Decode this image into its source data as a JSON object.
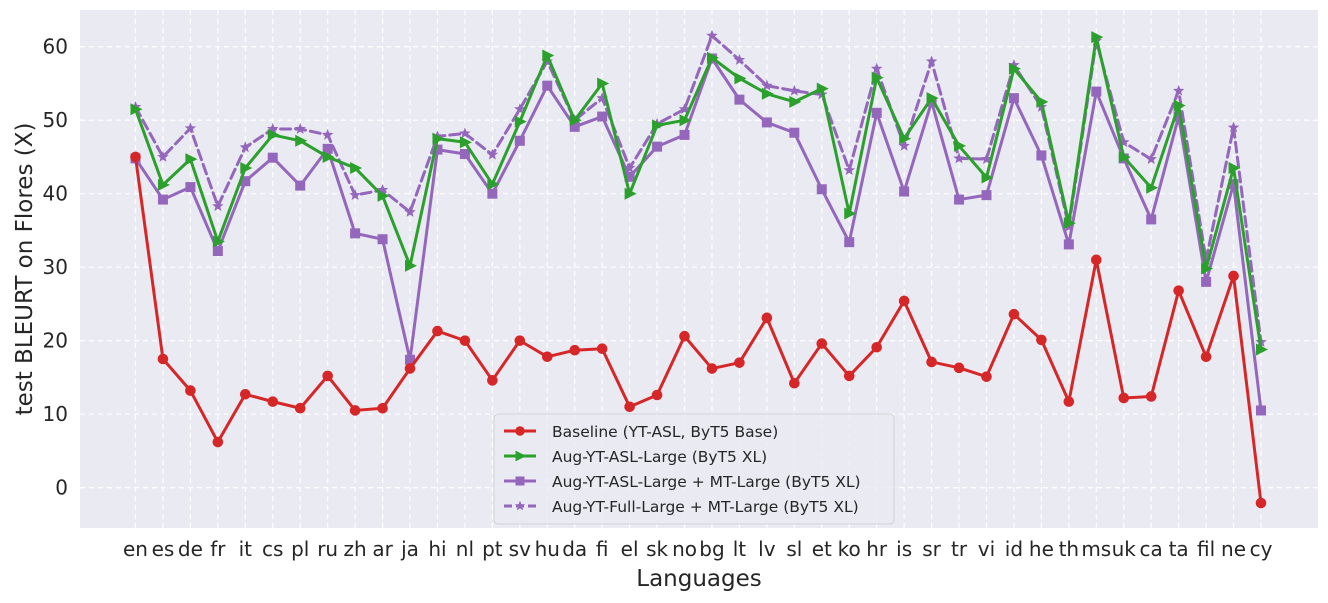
{
  "chart_data": {
    "type": "line",
    "xlabel": "Languages",
    "ylabel": "test BLEURT on Flores (X)",
    "ylim": [
      -5.5,
      65
    ],
    "yticks": [
      0,
      10,
      20,
      30,
      40,
      50,
      60
    ],
    "grid": true,
    "legend_position": "lower-center",
    "categories": [
      "en",
      "es",
      "de",
      "fr",
      "it",
      "cs",
      "pl",
      "ru",
      "zh",
      "ar",
      "ja",
      "hi",
      "nl",
      "pt",
      "sv",
      "hu",
      "da",
      "fi",
      "el",
      "sk",
      "no",
      "bg",
      "lt",
      "lv",
      "sl",
      "et",
      "ko",
      "hr",
      "is",
      "sr",
      "tr",
      "vi",
      "id",
      "he",
      "th",
      "ms",
      "uk",
      "ca",
      "ta",
      "fil",
      "ne",
      "cy"
    ],
    "series": [
      {
        "name": "Baseline (YT-ASL, ByT5 Base)",
        "color": "#d62728",
        "marker": "circle",
        "dash": "solid",
        "values": [
          45.0,
          17.5,
          13.2,
          6.2,
          12.7,
          11.7,
          10.8,
          15.2,
          10.5,
          10.8,
          16.2,
          21.3,
          20.0,
          14.6,
          20.0,
          17.8,
          18.7,
          18.9,
          11.0,
          12.6,
          20.6,
          16.2,
          17.0,
          23.1,
          14.2,
          19.6,
          15.2,
          19.1,
          25.4,
          17.1,
          16.3,
          15.1,
          23.6,
          20.1,
          11.7,
          31.0,
          12.2,
          12.4,
          26.8,
          17.8,
          28.8,
          -2.1
        ]
      },
      {
        "name": "Aug-YT-ASL-Large (ByT5 XL)",
        "color": "#2ca02c",
        "marker": "triangle-right",
        "dash": "solid",
        "values": [
          51.5,
          41.2,
          44.7,
          33.5,
          43.5,
          48.0,
          47.2,
          45.0,
          43.5,
          39.7,
          30.2,
          47.5,
          47.0,
          41.3,
          49.8,
          58.8,
          50.0,
          55.0,
          40.0,
          49.3,
          50.0,
          58.5,
          55.7,
          53.6,
          52.5,
          54.3,
          37.3,
          55.8,
          47.5,
          53.0,
          46.5,
          42.2,
          57.0,
          52.5,
          36.0,
          61.3,
          45.0,
          40.8,
          52.0,
          29.8,
          43.5,
          18.8
        ]
      },
      {
        "name": "Aug-YT-ASL-Large + MT-Large (ByT5 XL)",
        "color": "#9467bd",
        "marker": "square",
        "dash": "solid",
        "values": [
          44.8,
          39.2,
          40.9,
          32.2,
          41.7,
          44.9,
          41.1,
          46.1,
          34.6,
          33.8,
          17.4,
          46.0,
          45.4,
          40.0,
          47.2,
          54.7,
          49.1,
          50.5,
          42.3,
          46.4,
          48.0,
          58.4,
          52.8,
          49.7,
          48.3,
          40.6,
          33.4,
          51.0,
          40.3,
          52.5,
          39.2,
          39.8,
          53.0,
          45.2,
          33.1,
          53.9,
          44.8,
          36.5,
          50.5,
          28.0,
          41.3,
          10.5
        ]
      },
      {
        "name": "Aug-YT-Full-Large + MT-Large (ByT5 XL)",
        "color": "#9467bd",
        "marker": "star",
        "dash": "dashed",
        "values": [
          51.8,
          45.0,
          48.9,
          38.3,
          46.3,
          48.8,
          48.8,
          48.0,
          39.8,
          40.5,
          37.5,
          47.8,
          48.2,
          45.3,
          51.5,
          58.0,
          50.0,
          53.0,
          43.5,
          49.5,
          51.5,
          61.5,
          58.2,
          54.7,
          54.0,
          53.5,
          43.2,
          57.0,
          46.5,
          58.0,
          44.8,
          44.7,
          57.5,
          51.8,
          35.5,
          60.8,
          47.0,
          44.7,
          54.0,
          31.0,
          49.0,
          19.8
        ]
      }
    ]
  }
}
